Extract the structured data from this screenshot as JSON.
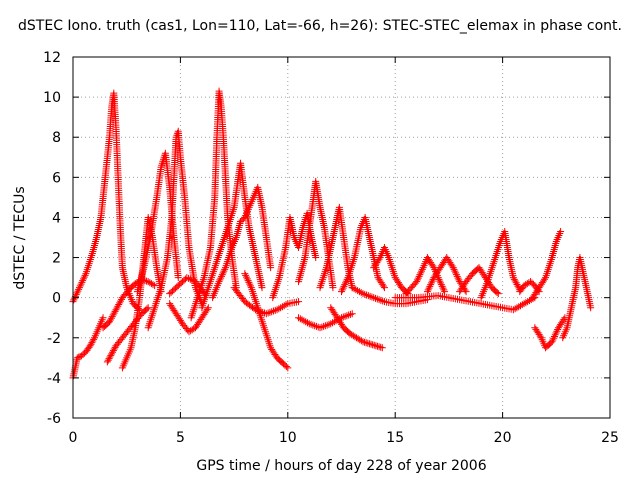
{
  "chart_data": {
    "type": "scatter",
    "title": "dSTEC Iono. truth (cas1, Lon=110, Lat=-66, h=26): STEC-STEC_elemax in phase cont.",
    "xlabel": "GPS time / hours of day 228 of year 2006",
    "ylabel": "dSTEC  / TECUs",
    "xlim": [
      0,
      25
    ],
    "ylim": [
      -6,
      12
    ],
    "xticks": [
      0,
      5,
      10,
      15,
      20,
      25
    ],
    "yticks": [
      -6,
      -4,
      -2,
      0,
      2,
      4,
      6,
      8,
      10,
      12
    ],
    "grid": true,
    "marker": "+",
    "color": "#ff0000",
    "series": [
      {
        "points": [
          [
            0.0,
            -4.0
          ],
          [
            0.1,
            -3.5
          ],
          [
            0.2,
            -3.0
          ],
          [
            0.4,
            -2.9
          ],
          [
            0.6,
            -2.7
          ],
          [
            0.8,
            -2.4
          ],
          [
            1.0,
            -2.0
          ],
          [
            1.2,
            -1.5
          ],
          [
            1.4,
            -1.0
          ]
        ]
      },
      {
        "points": [
          [
            0.0,
            -0.2
          ],
          [
            0.3,
            0.5
          ],
          [
            0.6,
            1.2
          ],
          [
            0.9,
            2.2
          ],
          [
            1.1,
            3.0
          ],
          [
            1.3,
            4.0
          ],
          [
            1.5,
            6.0
          ],
          [
            1.7,
            8.0
          ],
          [
            1.8,
            9.5
          ],
          [
            1.9,
            10.2
          ],
          [
            2.0,
            8.5
          ],
          [
            2.1,
            6.0
          ],
          [
            2.2,
            3.5
          ],
          [
            2.3,
            1.5
          ],
          [
            2.5,
            0.5
          ],
          [
            2.8,
            -0.3
          ],
          [
            3.1,
            -0.6
          ]
        ]
      },
      {
        "points": [
          [
            1.6,
            -3.2
          ],
          [
            1.8,
            -2.8
          ],
          [
            2.0,
            -2.4
          ],
          [
            2.3,
            -2.0
          ],
          [
            2.6,
            -1.6
          ],
          [
            2.9,
            -1.2
          ],
          [
            3.2,
            -0.8
          ],
          [
            3.5,
            -0.5
          ]
        ]
      },
      {
        "points": [
          [
            1.4,
            -1.5
          ],
          [
            1.7,
            -1.2
          ],
          [
            2.0,
            -0.6
          ],
          [
            2.3,
            0.0
          ],
          [
            2.6,
            0.4
          ],
          [
            2.9,
            0.7
          ],
          [
            3.2,
            0.9
          ],
          [
            3.5,
            0.8
          ],
          [
            3.8,
            0.6
          ]
        ]
      },
      {
        "points": [
          [
            2.3,
            -3.5
          ],
          [
            2.5,
            -3.0
          ],
          [
            2.7,
            -2.5
          ],
          [
            2.9,
            -1.5
          ],
          [
            3.1,
            0.0
          ],
          [
            3.3,
            2.0
          ],
          [
            3.5,
            4.0
          ],
          [
            3.7,
            3.0
          ],
          [
            3.9,
            1.5
          ],
          [
            4.1,
            0.3
          ]
        ]
      },
      {
        "points": [
          [
            3.0,
            0.3
          ],
          [
            3.3,
            1.5
          ],
          [
            3.6,
            3.0
          ],
          [
            3.9,
            5.0
          ],
          [
            4.1,
            6.5
          ],
          [
            4.3,
            7.2
          ],
          [
            4.5,
            5.5
          ],
          [
            4.7,
            3.0
          ],
          [
            4.9,
            1.0
          ]
        ]
      },
      {
        "points": [
          [
            3.5,
            -1.5
          ],
          [
            3.8,
            -0.5
          ],
          [
            4.1,
            0.5
          ],
          [
            4.4,
            2.0
          ],
          [
            4.6,
            4.0
          ],
          [
            4.7,
            6.0
          ],
          [
            4.8,
            8.0
          ],
          [
            4.9,
            8.3
          ],
          [
            5.0,
            7.0
          ],
          [
            5.2,
            5.0
          ],
          [
            5.4,
            2.5
          ],
          [
            5.7,
            0.5
          ],
          [
            6.0,
            -0.3
          ]
        ]
      },
      {
        "points": [
          [
            4.5,
            -0.3
          ],
          [
            4.8,
            -0.8
          ],
          [
            5.1,
            -1.3
          ],
          [
            5.4,
            -1.7
          ],
          [
            5.7,
            -1.5
          ],
          [
            6.0,
            -1.0
          ],
          [
            6.3,
            -0.5
          ]
        ]
      },
      {
        "points": [
          [
            4.5,
            0.2
          ],
          [
            4.9,
            0.6
          ],
          [
            5.3,
            1.0
          ],
          [
            5.7,
            0.8
          ],
          [
            6.0,
            0.4
          ],
          [
            6.2,
            0.1
          ]
        ]
      },
      {
        "points": [
          [
            5.5,
            -1.0
          ],
          [
            5.8,
            0.0
          ],
          [
            6.1,
            1.0
          ],
          [
            6.4,
            2.5
          ],
          [
            6.6,
            5.0
          ],
          [
            6.7,
            8.0
          ],
          [
            6.8,
            10.3
          ],
          [
            6.9,
            9.5
          ],
          [
            7.0,
            8.0
          ],
          [
            7.1,
            6.0
          ],
          [
            7.2,
            4.0
          ],
          [
            7.4,
            2.0
          ],
          [
            7.6,
            0.5
          ]
        ]
      },
      {
        "points": [
          [
            6.0,
            -0.5
          ],
          [
            6.3,
            0.5
          ],
          [
            6.6,
            1.5
          ],
          [
            6.9,
            2.5
          ],
          [
            7.2,
            3.5
          ],
          [
            7.5,
            4.5
          ],
          [
            7.7,
            6.0
          ],
          [
            7.8,
            6.7
          ],
          [
            8.0,
            5.0
          ],
          [
            8.2,
            3.5
          ],
          [
            8.4,
            2.5
          ],
          [
            8.6,
            1.5
          ],
          [
            8.8,
            0.5
          ]
        ]
      },
      {
        "points": [
          [
            6.5,
            0.0
          ],
          [
            6.8,
            0.8
          ],
          [
            7.1,
            1.5
          ],
          [
            7.4,
            2.5
          ],
          [
            7.6,
            3.0
          ],
          [
            7.8,
            3.8
          ],
          [
            8.0,
            4.0
          ],
          [
            8.2,
            4.5
          ],
          [
            8.4,
            5.0
          ],
          [
            8.6,
            5.5
          ],
          [
            8.8,
            4.5
          ],
          [
            9.0,
            3.0
          ],
          [
            9.2,
            1.5
          ]
        ]
      },
      {
        "points": [
          [
            8.0,
            1.2
          ],
          [
            8.3,
            0.5
          ],
          [
            8.6,
            -0.5
          ],
          [
            8.9,
            -1.5
          ],
          [
            9.2,
            -2.5
          ],
          [
            9.5,
            -3.0
          ],
          [
            9.8,
            -3.3
          ],
          [
            10.0,
            -3.5
          ]
        ]
      },
      {
        "points": [
          [
            7.5,
            0.5
          ],
          [
            8.0,
            -0.2
          ],
          [
            8.5,
            -0.6
          ],
          [
            9.0,
            -0.8
          ],
          [
            9.5,
            -0.6
          ],
          [
            10.0,
            -0.3
          ],
          [
            10.5,
            -0.2
          ]
        ]
      },
      {
        "points": [
          [
            9.3,
            0.0
          ],
          [
            9.6,
            1.0
          ],
          [
            9.9,
            2.5
          ],
          [
            10.1,
            4.0
          ],
          [
            10.3,
            3.0
          ],
          [
            10.5,
            2.5
          ],
          [
            10.7,
            3.5
          ],
          [
            10.9,
            4.2
          ],
          [
            11.1,
            3.0
          ],
          [
            11.3,
            2.0
          ]
        ]
      },
      {
        "points": [
          [
            10.5,
            0.8
          ],
          [
            10.8,
            2.0
          ],
          [
            11.0,
            3.5
          ],
          [
            11.2,
            5.0
          ],
          [
            11.3,
            5.8
          ],
          [
            11.5,
            4.5
          ],
          [
            11.7,
            3.5
          ],
          [
            11.9,
            2.0
          ],
          [
            12.1,
            0.5
          ]
        ]
      },
      {
        "points": [
          [
            11.5,
            0.5
          ],
          [
            11.8,
            1.5
          ],
          [
            12.0,
            2.5
          ],
          [
            12.2,
            3.5
          ],
          [
            12.4,
            4.5
          ],
          [
            12.6,
            3.0
          ],
          [
            12.8,
            1.5
          ],
          [
            13.0,
            0.5
          ]
        ]
      },
      {
        "points": [
          [
            12.0,
            -0.5
          ],
          [
            12.3,
            -1.0
          ],
          [
            12.6,
            -1.5
          ],
          [
            12.9,
            -1.8
          ],
          [
            13.2,
            -2.0
          ],
          [
            13.5,
            -2.2
          ],
          [
            13.8,
            -2.3
          ],
          [
            14.1,
            -2.4
          ],
          [
            14.4,
            -2.5
          ]
        ]
      },
      {
        "points": [
          [
            10.5,
            -1.0
          ],
          [
            11.0,
            -1.3
          ],
          [
            11.5,
            -1.5
          ],
          [
            12.0,
            -1.3
          ],
          [
            12.5,
            -1.0
          ],
          [
            13.0,
            -0.8
          ]
        ]
      },
      {
        "points": [
          [
            12.5,
            0.3
          ],
          [
            12.8,
            1.0
          ],
          [
            13.1,
            2.0
          ],
          [
            13.4,
            3.5
          ],
          [
            13.6,
            4.0
          ],
          [
            13.8,
            3.0
          ],
          [
            14.0,
            2.0
          ],
          [
            14.2,
            1.0
          ],
          [
            14.5,
            0.5
          ]
        ]
      },
      {
        "points": [
          [
            13.0,
            0.5
          ],
          [
            13.5,
            0.2
          ],
          [
            14.0,
            0.0
          ],
          [
            14.5,
            -0.2
          ],
          [
            15.0,
            -0.3
          ],
          [
            15.5,
            -0.3
          ],
          [
            16.0,
            -0.2
          ],
          [
            16.5,
            -0.1
          ]
        ]
      },
      {
        "points": [
          [
            14.0,
            1.5
          ],
          [
            14.3,
            2.0
          ],
          [
            14.5,
            2.5
          ],
          [
            14.7,
            2.0
          ],
          [
            15.0,
            1.0
          ],
          [
            15.3,
            0.5
          ],
          [
            15.6,
            0.2
          ]
        ]
      },
      {
        "points": [
          [
            15.5,
            0.2
          ],
          [
            16.0,
            0.8
          ],
          [
            16.3,
            1.5
          ],
          [
            16.5,
            2.0
          ],
          [
            16.8,
            1.5
          ],
          [
            17.0,
            1.0
          ],
          [
            17.3,
            0.3
          ]
        ]
      },
      {
        "points": [
          [
            16.5,
            0.3
          ],
          [
            16.8,
            1.0
          ],
          [
            17.1,
            1.5
          ],
          [
            17.4,
            2.0
          ],
          [
            17.7,
            1.5
          ],
          [
            18.0,
            0.8
          ],
          [
            18.3,
            0.3
          ]
        ]
      },
      {
        "points": [
          [
            15.0,
            0.0
          ],
          [
            16.0,
            0.0
          ],
          [
            17.0,
            0.1
          ],
          [
            18.0,
            -0.1
          ],
          [
            19.0,
            -0.3
          ],
          [
            20.0,
            -0.5
          ],
          [
            20.5,
            -0.6
          ],
          [
            21.0,
            -0.3
          ],
          [
            21.5,
            0.0
          ]
        ]
      },
      {
        "points": [
          [
            18.0,
            0.3
          ],
          [
            18.3,
            0.8
          ],
          [
            18.6,
            1.2
          ],
          [
            18.9,
            1.5
          ],
          [
            19.2,
            1.0
          ],
          [
            19.5,
            0.5
          ],
          [
            19.8,
            0.2
          ]
        ]
      },
      {
        "points": [
          [
            19.0,
            0.0
          ],
          [
            19.3,
            0.8
          ],
          [
            19.6,
            1.8
          ],
          [
            19.9,
            2.8
          ],
          [
            20.1,
            3.3
          ],
          [
            20.3,
            2.0
          ],
          [
            20.5,
            1.0
          ],
          [
            20.8,
            0.4
          ]
        ]
      },
      {
        "points": [
          [
            20.8,
            0.3
          ],
          [
            21.0,
            0.6
          ],
          [
            21.3,
            0.8
          ],
          [
            21.5,
            0.6
          ],
          [
            21.7,
            0.3
          ]
        ]
      },
      {
        "points": [
          [
            21.4,
            0.0
          ],
          [
            21.7,
            0.5
          ],
          [
            22.0,
            1.0
          ],
          [
            22.3,
            2.0
          ],
          [
            22.5,
            2.8
          ],
          [
            22.7,
            3.3
          ]
        ]
      },
      {
        "points": [
          [
            21.5,
            -1.5
          ],
          [
            21.8,
            -2.0
          ],
          [
            22.0,
            -2.5
          ],
          [
            22.3,
            -2.2
          ],
          [
            22.6,
            -1.5
          ],
          [
            22.9,
            -1.0
          ]
        ]
      },
      {
        "points": [
          [
            22.8,
            -2.0
          ],
          [
            23.0,
            -1.5
          ],
          [
            23.2,
            -0.5
          ],
          [
            23.4,
            0.5
          ],
          [
            23.5,
            1.5
          ],
          [
            23.6,
            2.0
          ],
          [
            23.8,
            1.0
          ],
          [
            24.0,
            0.0
          ],
          [
            24.1,
            -0.5
          ]
        ]
      }
    ]
  }
}
